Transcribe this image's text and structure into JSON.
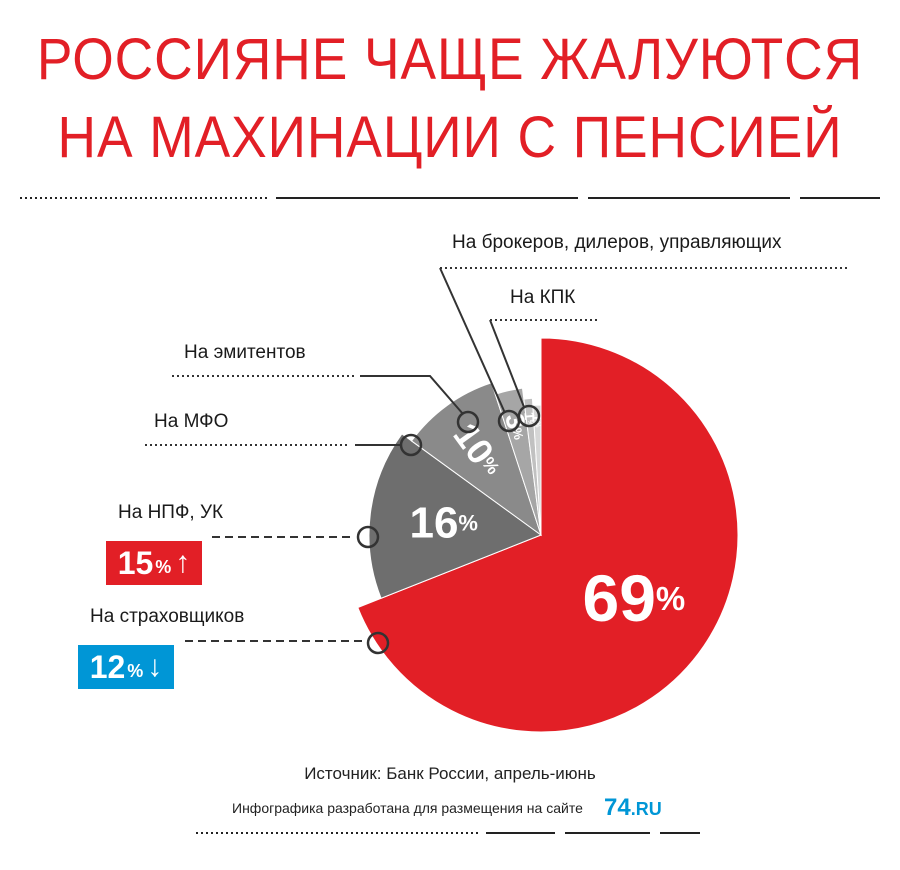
{
  "title": {
    "line1": "РОССИЯНЕ ЧАЩЕ ЖАЛУЮТСЯ",
    "line2": "НА МАХИНАЦИИ С ПЕНСИЕЙ"
  },
  "chart_data": {
    "type": "pie",
    "unit": "%",
    "slices": [
      {
        "label": "На страховщиков",
        "value": 69,
        "color": "#e21f26"
      },
      {
        "label": "На НПФ, УК",
        "value": 16,
        "color": "#6e6e6e"
      },
      {
        "label": "На МФО",
        "value": 10,
        "color": "#8a8a8a"
      },
      {
        "label": "На эмитентов",
        "value": 3,
        "color": "#a6a6a6"
      },
      {
        "label": "На брокеров, дилеров, управляющих",
        "value": 1,
        "color": "#c1c1c1"
      },
      {
        "label": "На КПК",
        "value": 1,
        "color": "#d6d6d6"
      }
    ],
    "value_labels": [
      "69",
      "16",
      "10",
      "3",
      "1",
      "1"
    ],
    "badges": [
      {
        "for": "На НПФ, УК",
        "value": "15",
        "unit": "%",
        "arrow": "↑",
        "color": "#e21f26"
      },
      {
        "for": "На страховщиков",
        "value": "12",
        "unit": "%",
        "arrow": "↓",
        "color": "#0096d6"
      }
    ]
  },
  "footer": {
    "source": "Источник: Банк России, апрель-июнь",
    "credit": "Инфографика разработана для размещения на сайте",
    "logo_number": "74",
    "logo_domain": ".RU"
  },
  "colors": {
    "accent_red": "#e21f26",
    "accent_blue": "#0096d6",
    "line_gray": "#333333"
  }
}
